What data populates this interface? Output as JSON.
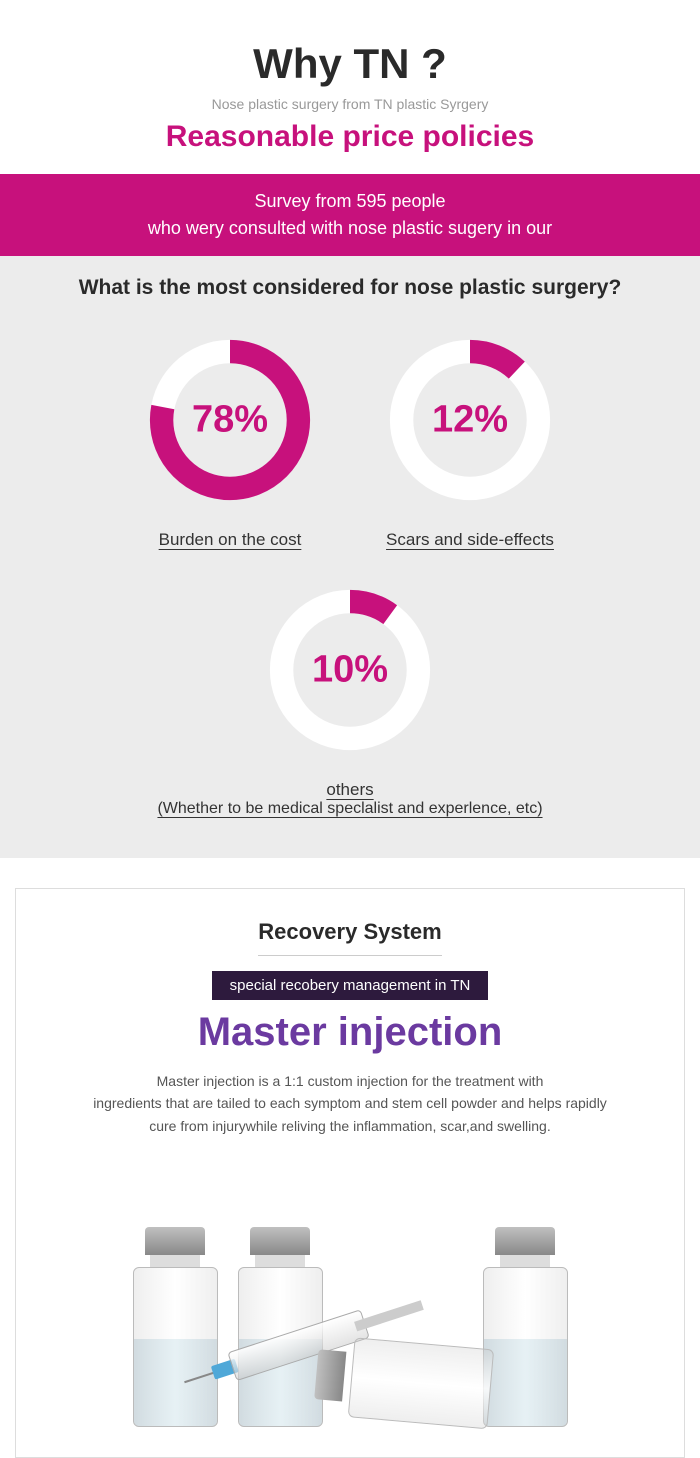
{
  "header": {
    "title": "Why TN ?",
    "subtitle_gray": "Nose plastic surgery from TN plastic Syrgery",
    "subtitle_pink": "Reasonable price policies"
  },
  "survey_banner": {
    "line1": "Survey from 595 people",
    "line2": "who wery consulted with nose plastic sugery in our"
  },
  "chart": {
    "question": "What is the most considered for nose plastic surgery?",
    "ring_color": "#c7117c",
    "ring_bg": "#ffffff",
    "section_bg": "#ececec",
    "ring_width": 22,
    "items": [
      {
        "pct": 78,
        "label": "Burden on the cost"
      },
      {
        "pct": 12,
        "label": "Scars and side-effects"
      },
      {
        "pct": 10,
        "label": "others",
        "sublabel": "(Whether to be medical speclalist and experlence, etc)"
      }
    ]
  },
  "recovery": {
    "title": "Recovery System",
    "badge": "special recobery management in TN",
    "big": "Master injection",
    "big_color": "#6b3aa0",
    "badge_bg": "#2d1a3d",
    "desc": "Master injection is a 1:1 custom injection for the treatment with\ningredients that are tailed to each symptom and stem cell powder and helps rapidly\ncure from injurywhile reliving  the inflammation, scar,and swelling."
  }
}
